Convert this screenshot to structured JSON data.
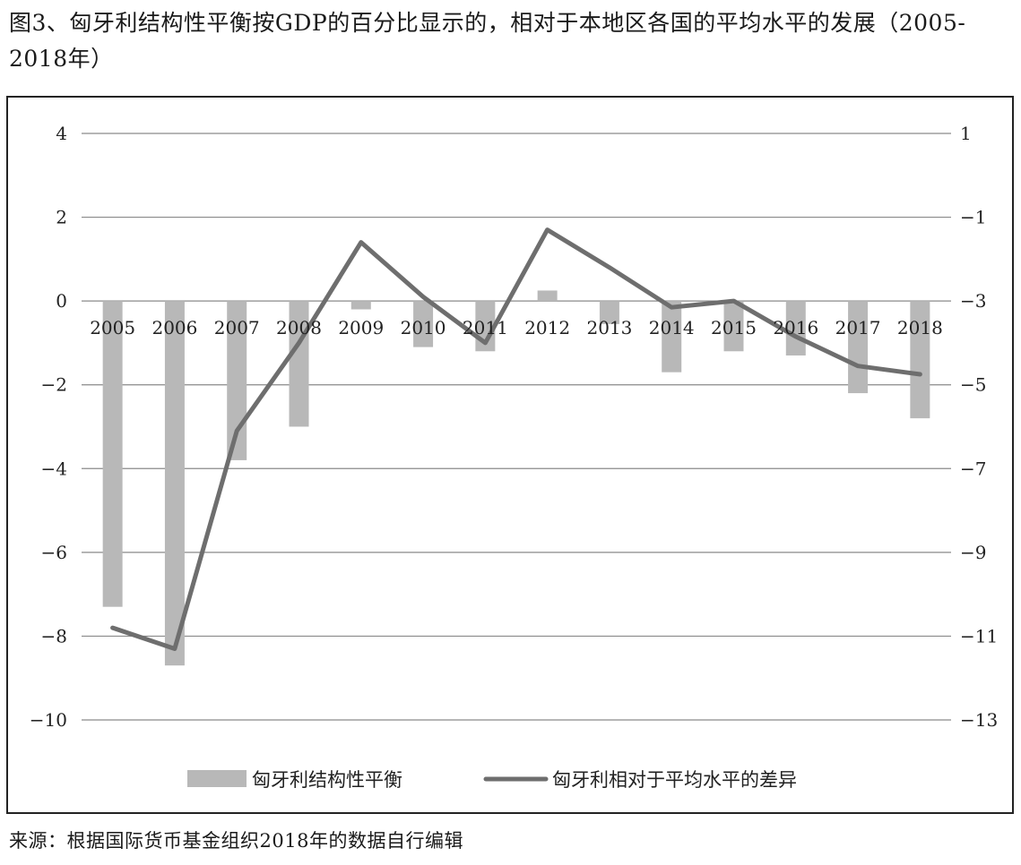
{
  "title": "图3、匈牙利结构性平衡按GDP的百分比显示的，相对于本地区各国的平均水平的发展（2005-2018年）",
  "source": "来源：根据国际货币基金组织2018年的数据自行编辑",
  "chart_data": {
    "type": "bar",
    "categories": [
      "2005",
      "2006",
      "2007",
      "2008",
      "2009",
      "2010",
      "2011",
      "2012",
      "2013",
      "2014",
      "2015",
      "2016",
      "2017",
      "2018"
    ],
    "series": [
      {
        "name": "匈牙利结构性平衡",
        "type": "bar",
        "axis": "left",
        "color": "#b8b8b8",
        "values": [
          -7.3,
          -8.7,
          -3.8,
          -3.0,
          -0.2,
          -1.1,
          -1.2,
          0.25,
          -0.55,
          -1.7,
          -1.2,
          -1.3,
          -2.2,
          -2.8
        ]
      },
      {
        "name": "匈牙利相对于平均水平的差异",
        "type": "line",
        "axis": "right",
        "color": "#6e6e6e",
        "values": [
          -10.8,
          -11.3,
          -6.1,
          -4.0,
          -1.6,
          -2.9,
          -4.0,
          -1.3,
          -2.2,
          -3.15,
          -3.0,
          -3.85,
          -4.55,
          -4.75
        ]
      }
    ],
    "y_left": {
      "ylim": [
        -10,
        4
      ],
      "ticks": [
        4,
        2,
        0,
        -2,
        -4,
        -6,
        -8,
        -10
      ],
      "tick_labels": [
        "4",
        "2",
        "0",
        "−2",
        "−4",
        "−6",
        "−8",
        "−10"
      ]
    },
    "y_right": {
      "ylim": [
        -13,
        1
      ],
      "ticks": [
        1,
        -1,
        -3,
        -5,
        -7,
        -9,
        -11,
        -13
      ],
      "tick_labels": [
        "1",
        "−1",
        "−3",
        "−5",
        "−7",
        "−9",
        "−11",
        "−13"
      ]
    },
    "grid": true,
    "legend": "bottom"
  }
}
